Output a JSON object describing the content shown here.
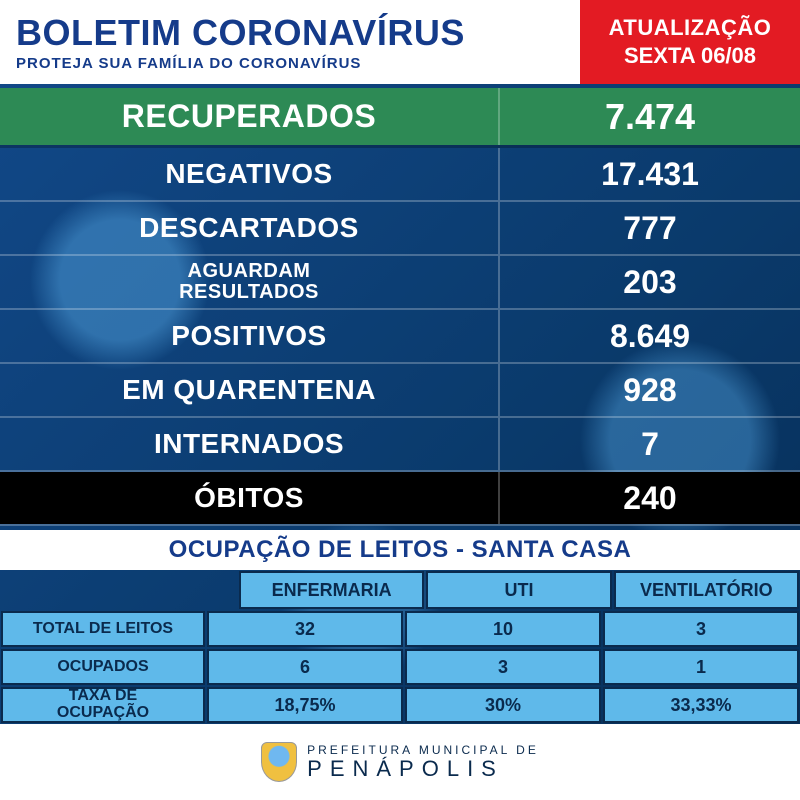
{
  "header": {
    "title": "BOLETIM CORONAVÍRUS",
    "subtitle": "PROTEJA SUA FAMÍLIA DO CORONAVÍRUS",
    "update_label": "ATUALIZAÇÃO",
    "update_date": "SEXTA 06/08"
  },
  "colors": {
    "title_blue": "#153b8a",
    "red": "#e31b23",
    "green": "#2d8a55",
    "black": "#000000",
    "occ_cell_bg": "#5fb9ea",
    "bg_deep": "#0a3a6b"
  },
  "stats": [
    {
      "label": "RECUPERADOS",
      "value": "7.474",
      "style": "highlight"
    },
    {
      "label": "NEGATIVOS",
      "value": "17.431",
      "style": "normal"
    },
    {
      "label": "DESCARTADOS",
      "value": "777",
      "style": "normal"
    },
    {
      "label": "AGUARDAM\nRESULTADOS",
      "value": "203",
      "style": "small"
    },
    {
      "label": "POSITIVOS",
      "value": "8.649",
      "style": "normal"
    },
    {
      "label": "EM QUARENTENA",
      "value": "928",
      "style": "normal"
    },
    {
      "label": "INTERNADOS",
      "value": "7",
      "style": "normal"
    },
    {
      "label": "ÓBITOS",
      "value": "240",
      "style": "obitos"
    }
  ],
  "occupancy": {
    "title": "OCUPAÇÃO DE LEITOS - SANTA CASA",
    "columns": [
      "ENFERMARIA",
      "UTI",
      "VENTILATÓRIO"
    ],
    "rows": [
      {
        "label": "TOTAL DE LEITOS",
        "cells": [
          "32",
          "10",
          "3"
        ]
      },
      {
        "label": "OCUPADOS",
        "cells": [
          "6",
          "3",
          "1"
        ]
      },
      {
        "label": "TAXA DE\nOCUPAÇÃO",
        "cells": [
          "18,75%",
          "30%",
          "33,33%"
        ]
      }
    ]
  },
  "footer": {
    "line1": "PREFEITURA MUNICIPAL DE",
    "city": "PENÁPOLIS"
  }
}
